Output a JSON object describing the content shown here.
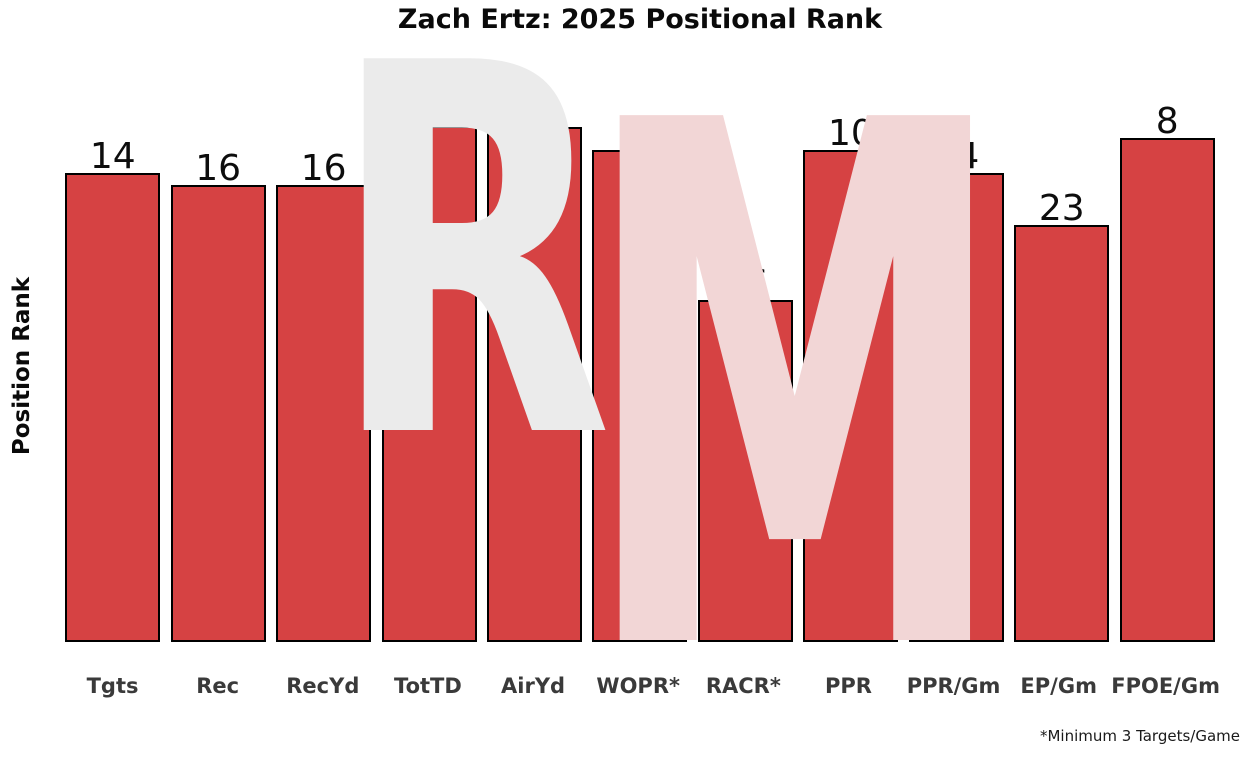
{
  "figure": {
    "title": "Zach Ertz: 2025 Positional Rank",
    "ylabel": "Position Rank",
    "footnote": "*Minimum 3 Targets/Game",
    "watermark": {
      "letter_r": "R",
      "letter_m": "M",
      "r_color": "#ebebeb",
      "m_color": "#f2d6d6"
    }
  },
  "chart_data": {
    "type": "bar",
    "title": "Zach Ertz: 2025 Positional Rank",
    "xlabel": "",
    "ylabel": "Position Rank",
    "categories": [
      "Tgts",
      "Rec",
      "RecYd",
      "TotTD",
      "AirYd",
      "WOPR*",
      "RACR*",
      "PPR",
      "PPR/Gm",
      "EP/Gm",
      "FPOE/Gm"
    ],
    "values": [
      14,
      16,
      16,
      3,
      6,
      10,
      36,
      10,
      14,
      23,
      8
    ],
    "value_labels_shown": true,
    "bar_color": "#d64243",
    "bar_edge_color": "#000000",
    "axis_note": "bar height inverted: lower rank = taller bar",
    "ylim": [
      0,
      95
    ],
    "grid": false,
    "legend_position": "none",
    "footnote": "*Minimum 3 Targets/Game"
  }
}
